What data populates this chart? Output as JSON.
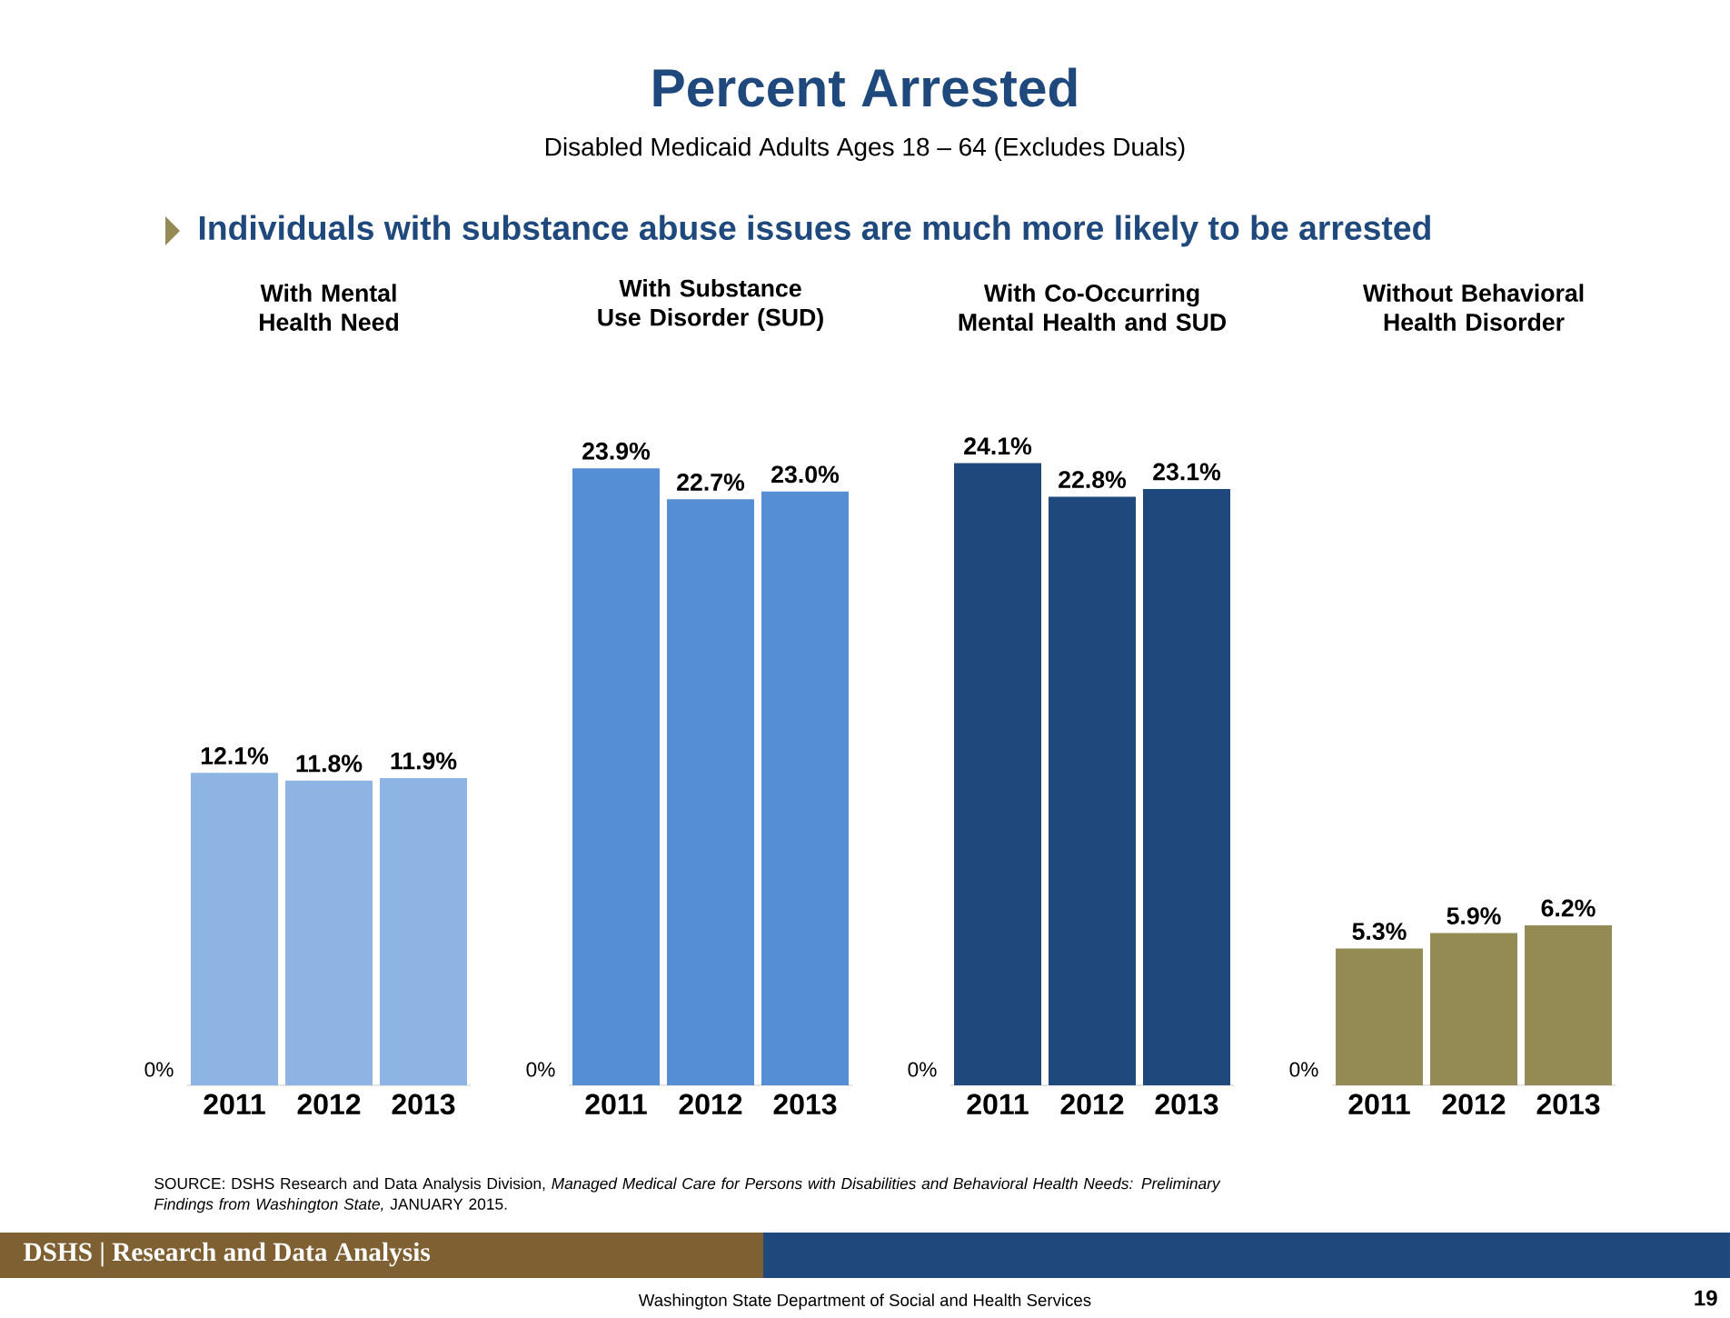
{
  "chart_data": [
    {
      "type": "other",
      "title": "Percent Arrested",
      "subtitle": "Disabled Medicaid Adults Ages 18 – 64 (Excludes Duals)",
      "annotations": [
        "Individuals with substance abuse issues are much more likely to be arrested",
        "SOURCE: DSHS Research and Data Analysis Division, *Managed Medical Care for Persons with Disabilities and Behavioral Health Needs: Preliminary Findings from Washington State,* JANUARY 2015.",
        "DSHS | Research and Data Analysis",
        "Washington State Department of Social and Health Services",
        "19"
      ]
    },
    {
      "type": "bar",
      "title": "With Mental Health Need",
      "categories": [
        "2011",
        "2012",
        "2013"
      ],
      "values": [
        12.1,
        11.8,
        11.9
      ],
      "value_labels": [
        "12.1%",
        "11.8%",
        "11.9%"
      ],
      "color": "#8eb4e3",
      "annotations": [
        "0%"
      ]
    },
    {
      "type": "bar",
      "title": "With Substance Use Disorder (SUD)",
      "categories": [
        "2011",
        "2012",
        "2013"
      ],
      "values": [
        23.9,
        22.7,
        23.0
      ],
      "value_labels": [
        "23.9%",
        "22.7%",
        "23.0%"
      ],
      "color": "#558ed5",
      "annotations": [
        "0%"
      ]
    },
    {
      "type": "bar",
      "title": "With Co-Occurring Mental Health and SUD",
      "categories": [
        "2011",
        "2012",
        "2013"
      ],
      "values": [
        24.1,
        22.8,
        23.1
      ],
      "value_labels": [
        "24.1%",
        "22.8%",
        "23.1%"
      ],
      "color": "#1f497d",
      "annotations": [
        "0%"
      ]
    },
    {
      "type": "bar",
      "title": "Without Behavioral Health Disorder",
      "categories": [
        "2011",
        "2012",
        "2013"
      ],
      "values": [
        5.3,
        5.9,
        6.2
      ],
      "value_labels": [
        "5.3%",
        "5.9%",
        "6.2%"
      ],
      "color": "#948a54",
      "annotations": [
        "0%"
      ]
    }
  ]
}
